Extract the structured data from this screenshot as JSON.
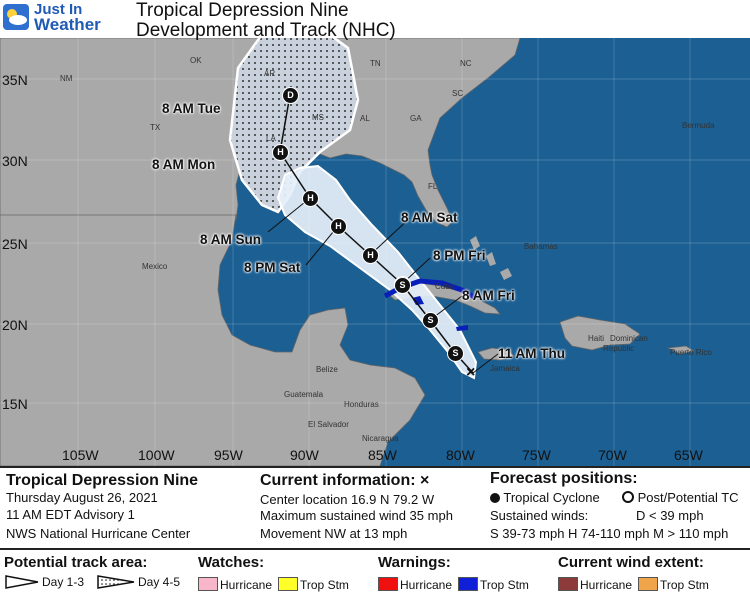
{
  "header": {
    "logo_line1": "Just In",
    "logo_line2": "Weather",
    "title_line1": "Tropical Depression Nine",
    "title_line2": "Development and Track (NHC)"
  },
  "map": {
    "lat_labels": [
      "35N",
      "30N",
      "25N",
      "20N",
      "15N"
    ],
    "lon_labels": [
      "105W",
      "100W",
      "95W",
      "90W",
      "85W",
      "80W",
      "75W",
      "70W",
      "65W"
    ],
    "region_labels": [
      "OK",
      "NM",
      "TX",
      "AR",
      "TN",
      "NC",
      "MS",
      "AL",
      "GA",
      "SC",
      "LA",
      "FL",
      "Bermuda",
      "Mexico",
      "Bahamas",
      "Cuba",
      "Haiti",
      "Dominican",
      "Republic",
      "Puerto Rico",
      "Jamaica",
      "Belize",
      "Guatemala",
      "Honduras",
      "El Salvador",
      "Nicaragua"
    ],
    "forecast_points": [
      {
        "label": "8 AM Tue",
        "marker": "D"
      },
      {
        "label": "8 AM Mon",
        "marker": "H"
      },
      {
        "label": "8 AM Sun",
        "marker": "H"
      },
      {
        "label": "8 PM Sat",
        "marker": "H"
      },
      {
        "label": "8 AM Sat",
        "marker": "H"
      },
      {
        "label": "8 PM Fri",
        "marker": "S"
      },
      {
        "label": "8 AM Fri",
        "marker": "S"
      },
      {
        "label": "11 AM Thu",
        "marker": "S"
      }
    ],
    "extra_markers": [
      "S"
    ],
    "colors": {
      "land": "#a9a9a9",
      "water": "#1b5f93",
      "cone_day13": "#e6f0fa",
      "cone_day45": "#c9d2dc",
      "hurricane_warning": "#0a1fb8"
    }
  },
  "info": {
    "storm_name": "Tropical Depression Nine",
    "date": "Thursday August 26, 2021",
    "advisory": "11 AM EDT Advisory 1",
    "center": "NWS National Hurricane Center",
    "current_heading": "Current information: ×",
    "location": "Center location 16.9 N 79.2 W",
    "max_wind": "Maximum sustained wind 35 mph",
    "movement": "Movement NW at 13 mph",
    "forecast_heading": "Forecast positions:",
    "tropical_cyclone": "Tropical Cyclone",
    "post_tc": "Post/Potential TC",
    "sustained": "Sustained winds:",
    "d_wind": "D < 39 mph",
    "shm_wind": "S 39-73 mph   H 74-110 mph   M > 110 mph"
  },
  "legend": {
    "potential_track": "Potential track area:",
    "day13": "Day 1-3",
    "day45": "Day 4-5",
    "watches": "Watches:",
    "warnings": "Warnings:",
    "current_wind": "Current wind extent:",
    "hurricane": "Hurricane",
    "trop_stm": "Trop Stm",
    "colors": {
      "watch_hurricane": "#f7b6c9",
      "watch_trop": "#ffff2a",
      "warn_hurricane": "#f01010",
      "warn_trop": "#1020d8",
      "wind_hurricane": "#8c3a3a",
      "wind_trop": "#f0a54a"
    }
  }
}
